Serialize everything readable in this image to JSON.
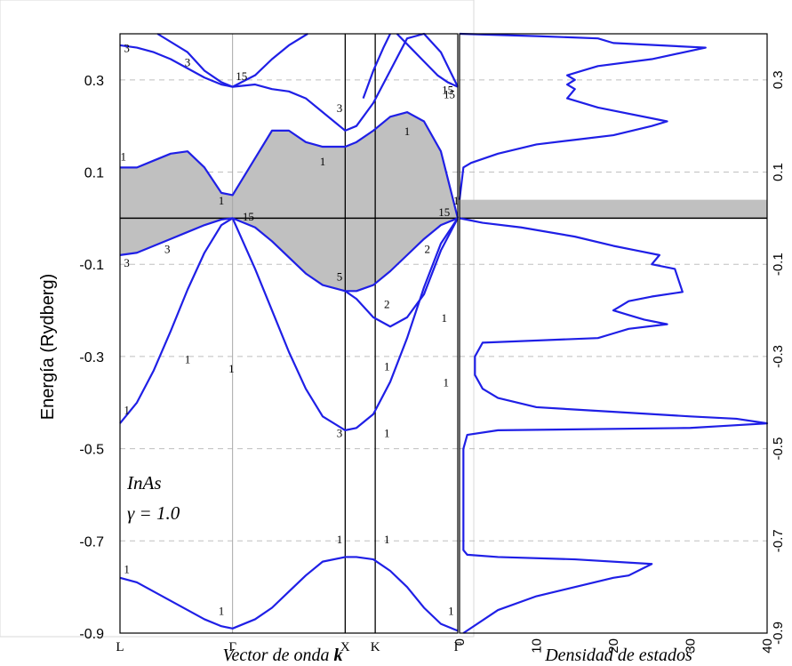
{
  "chart_data": [
    {
      "type": "line",
      "title": "",
      "xlabel_text": "Vector de onda ",
      "xlabel_bold": "k",
      "ylabel": "Energía (Rydberg)",
      "ylim": [
        -0.9,
        0.4
      ],
      "yticks": [
        -0.9,
        -0.7,
        -0.5,
        -0.3,
        -0.1,
        0.1,
        0.3
      ],
      "ytick_labels": [
        "-0.9",
        "-0.7",
        "-0.5",
        "-0.3",
        "-0.1",
        "0.1",
        "0.3"
      ],
      "xlim": [
        0,
        1
      ],
      "x_symmetry_points": [
        {
          "label": "L",
          "x": 0.0
        },
        {
          "label": "Γ",
          "x": 0.3333
        },
        {
          "label": "X",
          "x": 0.6667
        },
        {
          "label": "K",
          "x": 0.7556
        },
        {
          "label": "Γ",
          "x": 1.0
        }
      ],
      "fermi_level": 0.0,
      "grid": "horizontal dashed",
      "annotation_lines": [
        "InAs",
        "γ = 1.0"
      ],
      "shaded_region": {
        "upper": {
          "x": [
            0,
            0.05,
            0.1,
            0.15,
            0.2,
            0.25,
            0.3,
            0.3333,
            0.4,
            0.45,
            0.5,
            0.55,
            0.6,
            0.6667,
            0.7,
            0.75,
            0.8,
            0.85,
            0.9,
            0.95,
            1.0
          ],
          "y": [
            0.11,
            0.11,
            0.125,
            0.14,
            0.145,
            0.11,
            0.055,
            0.05,
            0.13,
            0.19,
            0.19,
            0.165,
            0.155,
            0.155,
            0.165,
            0.19,
            0.22,
            0.23,
            0.21,
            0.145,
            0.0
          ]
        },
        "lower": {
          "x": [
            0,
            0.05,
            0.1,
            0.15,
            0.2,
            0.25,
            0.3,
            0.3333,
            0.4,
            0.45,
            0.5,
            0.55,
            0.6,
            0.6667,
            0.7,
            0.75,
            0.8,
            0.85,
            0.9,
            0.95,
            1.0
          ],
          "y": [
            -0.08,
            -0.075,
            -0.06,
            -0.045,
            -0.03,
            -0.015,
            -0.003,
            0.0,
            -0.02,
            -0.05,
            -0.085,
            -0.12,
            -0.145,
            -0.158,
            -0.158,
            -0.145,
            -0.115,
            -0.08,
            -0.045,
            -0.015,
            0.0
          ]
        }
      },
      "series": [
        {
          "x": [
            0,
            0.05,
            0.1,
            0.15,
            0.2,
            0.25,
            0.3,
            0.3333,
            0.4,
            0.45,
            0.5,
            0.55,
            0.6,
            0.6667,
            0.7,
            0.75,
            0.8,
            0.85,
            0.9,
            0.95,
            1.0
          ],
          "y": [
            -0.78,
            -0.79,
            -0.81,
            -0.83,
            -0.85,
            -0.87,
            -0.885,
            -0.89,
            -0.87,
            -0.845,
            -0.81,
            -0.775,
            -0.745,
            -0.735,
            -0.735,
            -0.74,
            -0.765,
            -0.8,
            -0.845,
            -0.88,
            -0.895
          ]
        },
        {
          "x": [
            0,
            0.05,
            0.1,
            0.15,
            0.2,
            0.25,
            0.3,
            0.3333
          ],
          "y": [
            -0.445,
            -0.4,
            -0.33,
            -0.245,
            -0.155,
            -0.075,
            -0.015,
            0.0
          ]
        },
        {
          "x": [
            0.3333,
            0.4,
            0.45,
            0.5,
            0.55,
            0.6,
            0.6667,
            0.7,
            0.75,
            0.8,
            0.85,
            0.9,
            0.95,
            1.0
          ],
          "y": [
            0.0,
            -0.11,
            -0.2,
            -0.29,
            -0.37,
            -0.43,
            -0.46,
            -0.455,
            -0.425,
            -0.355,
            -0.26,
            -0.15,
            -0.055,
            0.0
          ]
        },
        {
          "x": [
            0,
            0.05,
            0.1,
            0.15,
            0.2,
            0.25,
            0.3,
            0.3333,
            0.4,
            0.45,
            0.5,
            0.55,
            0.6,
            0.6667,
            0.7,
            0.75,
            0.8,
            0.85,
            0.9,
            0.95,
            1.0
          ],
          "y": [
            -0.08,
            -0.075,
            -0.06,
            -0.045,
            -0.03,
            -0.015,
            -0.003,
            0.0,
            -0.02,
            -0.05,
            -0.085,
            -0.12,
            -0.145,
            -0.158,
            -0.158,
            -0.145,
            -0.115,
            -0.08,
            -0.045,
            -0.015,
            0.0
          ]
        },
        {
          "x": [
            0.6667,
            0.7,
            0.75,
            0.8,
            0.85,
            0.9,
            0.95,
            1.0
          ],
          "y": [
            -0.158,
            -0.175,
            -0.215,
            -0.235,
            -0.215,
            -0.165,
            -0.07,
            0.0
          ]
        },
        {
          "x": [
            0,
            0.05,
            0.1,
            0.15,
            0.2,
            0.25,
            0.3,
            0.3333,
            0.4,
            0.45,
            0.5,
            0.55,
            0.6,
            0.6667,
            0.7,
            0.75,
            0.8,
            0.85,
            0.9,
            0.95,
            1.0
          ],
          "y": [
            0.11,
            0.11,
            0.125,
            0.14,
            0.145,
            0.11,
            0.055,
            0.05,
            0.13,
            0.19,
            0.19,
            0.165,
            0.155,
            0.155,
            0.165,
            0.19,
            0.22,
            0.23,
            0.21,
            0.145,
            0.0
          ]
        },
        {
          "x": [
            0,
            0.05,
            0.1,
            0.15,
            0.2,
            0.25,
            0.3,
            0.3333,
            0.4,
            0.45,
            0.5,
            0.55,
            0.6,
            0.6667,
            0.7,
            0.75,
            0.8,
            0.85,
            0.9,
            0.95,
            1.0
          ],
          "y": [
            0.375,
            0.37,
            0.36,
            0.345,
            0.325,
            0.305,
            0.29,
            0.285,
            0.29,
            0.28,
            0.275,
            0.26,
            0.23,
            0.19,
            0.2,
            0.25,
            0.32,
            0.39,
            0.4,
            0.36,
            0.285
          ]
        },
        {
          "x": [
            0.3333,
            0.4,
            0.45,
            0.5,
            0.5556
          ],
          "y": [
            0.285,
            0.31,
            0.345,
            0.375,
            0.4
          ]
        },
        {
          "x": [
            0.1111,
            0.2,
            0.25,
            0.3,
            0.3333
          ],
          "y": [
            0.4,
            0.36,
            0.32,
            0.295,
            0.285
          ]
        },
        {
          "x": [
            0.72,
            0.75,
            0.78,
            0.8
          ],
          "y": [
            0.26,
            0.32,
            0.37,
            0.4
          ]
        },
        {
          "x": [
            0.82,
            0.86,
            0.9,
            0.94,
            0.97,
            1.0
          ],
          "y": [
            0.4,
            0.37,
            0.34,
            0.31,
            0.295,
            0.285
          ]
        }
      ],
      "band_labels": [
        {
          "text": "3",
          "x": 0.02,
          "y": 0.36
        },
        {
          "text": "3",
          "x": 0.2,
          "y": 0.33
        },
        {
          "text": "15",
          "x": 0.36,
          "y": 0.3
        },
        {
          "text": "3",
          "x": 0.65,
          "y": 0.23
        },
        {
          "text": "1",
          "x": 0.85,
          "y": 0.18
        },
        {
          "text": "15",
          "x": 0.97,
          "y": 0.27
        },
        {
          "text": "15",
          "x": 0.975,
          "y": 0.26
        },
        {
          "text": "1",
          "x": 0.01,
          "y": 0.125
        },
        {
          "text": "1",
          "x": 0.6,
          "y": 0.115
        },
        {
          "text": "1",
          "x": 0.3,
          "y": 0.03
        },
        {
          "text": "1",
          "x": 0.995,
          "y": 0.03
        },
        {
          "text": "15",
          "x": 0.38,
          "y": -0.005
        },
        {
          "text": "3",
          "x": 0.02,
          "y": -0.105
        },
        {
          "text": "3",
          "x": 0.14,
          "y": -0.075
        },
        {
          "text": "2",
          "x": 0.91,
          "y": -0.075
        },
        {
          "text": "15",
          "x": 0.96,
          "y": 0.005
        },
        {
          "text": "5",
          "x": 0.65,
          "y": -0.135
        },
        {
          "text": "2",
          "x": 0.79,
          "y": -0.195
        },
        {
          "text": "1",
          "x": 0.2,
          "y": -0.315
        },
        {
          "text": "1",
          "x": 0.33,
          "y": -0.335
        },
        {
          "text": "1",
          "x": 0.79,
          "y": -0.33
        },
        {
          "text": "1",
          "x": 0.96,
          "y": -0.225
        },
        {
          "text": "1",
          "x": 0.965,
          "y": -0.365
        },
        {
          "text": "1",
          "x": 0.02,
          "y": -0.425
        },
        {
          "text": "3",
          "x": 0.65,
          "y": -0.475
        },
        {
          "text": "1",
          "x": 0.79,
          "y": -0.475
        },
        {
          "text": "1",
          "x": 0.65,
          "y": -0.705
        },
        {
          "text": "1",
          "x": 0.79,
          "y": -0.705
        },
        {
          "text": "1",
          "x": 0.02,
          "y": -0.77
        },
        {
          "text": "1",
          "x": 0.3,
          "y": -0.86
        },
        {
          "text": "1",
          "x": 0.98,
          "y": -0.86
        }
      ]
    },
    {
      "type": "line",
      "title": "",
      "xlabel": "Densidad de estados",
      "xlim": [
        0,
        40
      ],
      "xticks": [
        0,
        10,
        20,
        30,
        40
      ],
      "xtick_labels": [
        "0",
        "10",
        "20",
        "30",
        "40"
      ],
      "ylim": [
        -0.9,
        0.4
      ],
      "ytick_labels": [
        "0.3",
        "0.1",
        "-0.1",
        "-0.3",
        "-0.5",
        "-0.7",
        "-0.9"
      ],
      "yticks": [
        0.3,
        0.1,
        -0.1,
        -0.3,
        -0.5,
        -0.7,
        -0.9
      ],
      "grid": "horizontal dashed",
      "gap_shading": {
        "from": 0.0,
        "to": 0.04
      },
      "series": [
        {
          "x": [
            0,
            0.5,
            1.5,
            5,
            10,
            15,
            20,
            25,
            27,
            18,
            14,
            15,
            14,
            15,
            14,
            16,
            18,
            25,
            32,
            20,
            18,
            10,
            0
          ],
          "y": [
            0.04,
            0.11,
            0.12,
            0.14,
            0.16,
            0.17,
            0.18,
            0.2,
            0.21,
            0.24,
            0.26,
            0.28,
            0.29,
            0.3,
            0.31,
            0.32,
            0.33,
            0.345,
            0.37,
            0.38,
            0.39,
            0.395,
            0.4
          ]
        },
        {
          "x": [
            0,
            3,
            8,
            15,
            20,
            23,
            26,
            25,
            28,
            29,
            25,
            22,
            21,
            20,
            22,
            24,
            27,
            22,
            20,
            18,
            3,
            2,
            2,
            3,
            5,
            10,
            20,
            30,
            36,
            40,
            35,
            30,
            5,
            1,
            0.5,
            0.5,
            0.5,
            0.5,
            1,
            5,
            15,
            25,
            22,
            20,
            10,
            5,
            0.5
          ],
          "y": [
            0.0,
            -0.01,
            -0.02,
            -0.04,
            -0.06,
            -0.07,
            -0.08,
            -0.1,
            -0.11,
            -0.16,
            -0.17,
            -0.18,
            -0.19,
            -0.2,
            -0.21,
            -0.22,
            -0.23,
            -0.24,
            -0.25,
            -0.26,
            -0.27,
            -0.3,
            -0.34,
            -0.37,
            -0.39,
            -0.41,
            -0.42,
            -0.43,
            -0.435,
            -0.445,
            -0.45,
            -0.455,
            -0.46,
            -0.47,
            -0.5,
            -0.6,
            -0.7,
            -0.72,
            -0.73,
            -0.735,
            -0.74,
            -0.75,
            -0.775,
            -0.78,
            -0.82,
            -0.85,
            -0.9
          ]
        }
      ]
    }
  ],
  "colors": {
    "curve": "#1f1fe6",
    "shade": "#c0c0c0",
    "grid": "#bfbfbf",
    "axis": "#000000"
  }
}
